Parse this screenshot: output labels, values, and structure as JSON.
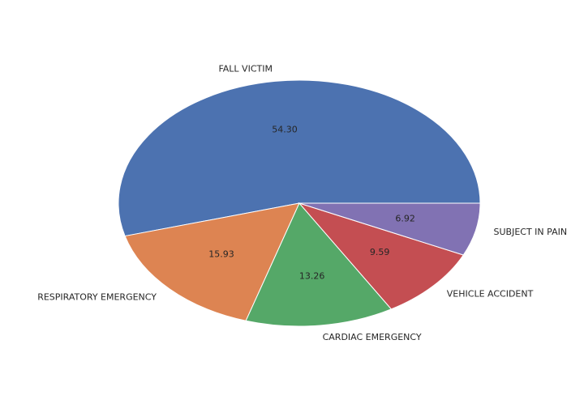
{
  "chart_data": {
    "type": "pie",
    "categories": [
      "FALL VICTIM",
      "RESPIRATORY EMERGENCY",
      "CARDIAC EMERGENCY",
      "VEHICLE ACCIDENT",
      "SUBJECT IN PAIN"
    ],
    "values": [
      54.3,
      15.93,
      13.26,
      9.59,
      6.92
    ],
    "value_labels": [
      "54.30",
      "15.93",
      "13.26",
      "9.59",
      "6.92"
    ],
    "colors": [
      "#4c72b0",
      "#dd8452",
      "#55a868",
      "#c44e52",
      "#8172b3"
    ],
    "start_angle": "3 o'clock, counter-clockwise"
  }
}
